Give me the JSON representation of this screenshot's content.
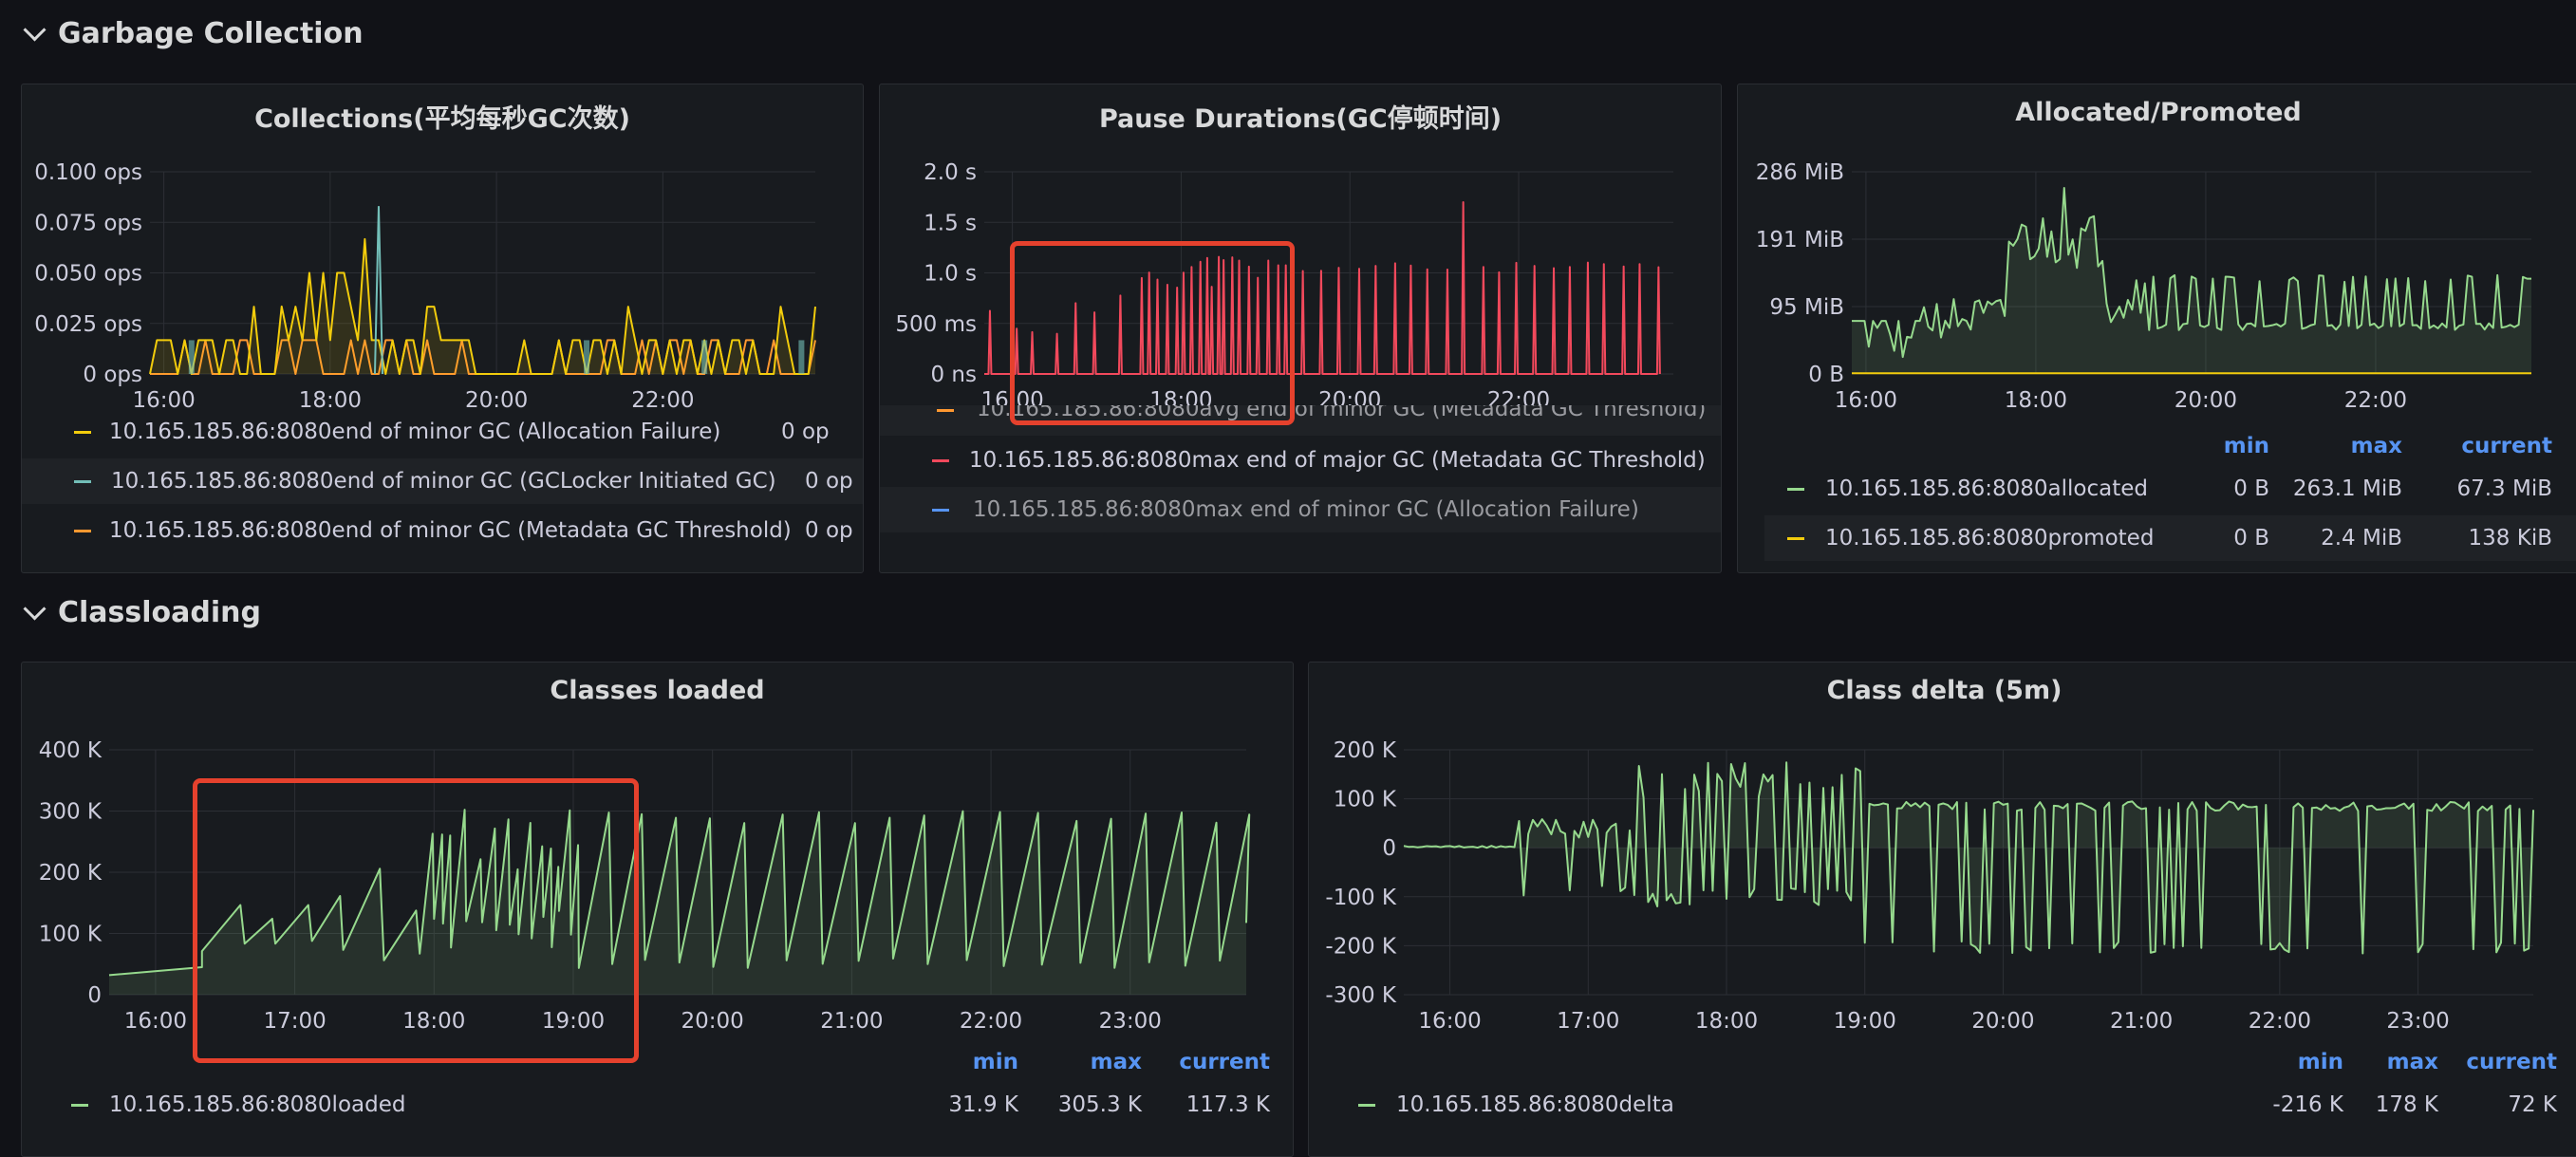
{
  "rows": {
    "gc": "Garbage Collection",
    "classloading": "Classloading"
  },
  "collections": {
    "title": "Collections(平均每秒GC次数)",
    "legend": [
      {
        "name": "10.165.185.86:8080end of minor GC (Allocation Failure)",
        "value": "0 op",
        "color": "#f2cc0c"
      },
      {
        "name": "10.165.185.86:8080end of minor GC (GCLocker Initiated GC)",
        "value": "0 op",
        "color": "#73bfb8"
      },
      {
        "name": "10.165.185.86:8080end of minor GC (Metadata GC Threshold)",
        "value": "0 op",
        "color": "#ff9830"
      }
    ]
  },
  "pause": {
    "title": "Pause Durations(GC停顿时间)",
    "legend": [
      {
        "name": "10.165.185.86:8080avg end of minor GC (Metadata GC Threshold)",
        "color": "#ff9830"
      },
      {
        "name": "10.165.185.86:8080max end of major GC (Metadata GC Threshold)",
        "color": "#f2495c"
      },
      {
        "name": "10.165.185.86:8080max end of minor GC (Allocation Failure)",
        "color": "#5794f2"
      }
    ]
  },
  "allocated": {
    "title": "Allocated/Promoted",
    "headers": {
      "min": "min",
      "max": "max",
      "current": "current"
    },
    "legend": [
      {
        "name": "10.165.185.86:8080allocated",
        "min": "0 B",
        "max": "263.1 MiB",
        "current": "67.3 MiB",
        "color": "#96d98d"
      },
      {
        "name": "10.165.185.86:8080promoted",
        "min": "0 B",
        "max": "2.4 MiB",
        "current": "138 KiB",
        "color": "#f2cc0c"
      }
    ]
  },
  "classes": {
    "title": "Classes loaded",
    "headers": {
      "min": "min",
      "max": "max",
      "current": "current"
    },
    "legend": [
      {
        "name": "10.165.185.86:8080loaded",
        "min": "31.9 K",
        "max": "305.3 K",
        "current": "117.3 K",
        "color": "#96d98d"
      }
    ]
  },
  "delta": {
    "title": "Class delta (5m)",
    "headers": {
      "min": "min",
      "max": "max",
      "current": "current"
    },
    "legend": [
      {
        "name": "10.165.185.86:8080delta",
        "min": "-216 K",
        "max": "178 K",
        "current": "72 K",
        "color": "#96d98d"
      }
    ]
  },
  "chart_data": [
    {
      "type": "line",
      "title": "Collections(平均每秒GC次数)",
      "x_start": "15:50",
      "x_end": "23:50",
      "xticks": [
        "16:00",
        "18:00",
        "20:00",
        "22:00"
      ],
      "yticks": [
        "0 ops",
        "0.025 ops",
        "0.050 ops",
        "0.075 ops",
        "0.100 ops"
      ],
      "ylim": [
        0,
        0.1
      ],
      "series": [
        {
          "name": "10.165.185.86:8080end of minor GC (Allocation Failure)",
          "color": "#f2cc0c",
          "levels": [
            0,
            0.0167,
            0.0333,
            0.05,
            0.0667
          ]
        },
        {
          "name": "10.165.185.86:8080end of minor GC (GCLocker Initiated GC)",
          "color": "#73bfb8",
          "spike_at": "18:35",
          "spike_value": 0.083
        },
        {
          "name": "10.165.185.86:8080end of minor GC (Metadata GC Threshold)",
          "color": "#ff9830",
          "levels": [
            0,
            0.0167
          ]
        }
      ]
    },
    {
      "type": "line",
      "title": "Pause Durations(GC停顿时间)",
      "x_start": "15:40",
      "x_end": "23:50",
      "xticks": [
        "16:00",
        "18:00",
        "20:00",
        "22:00"
      ],
      "yticks": [
        "0 ns",
        "500 ms",
        "1.0 s",
        "1.5 s",
        "2.0 s"
      ],
      "ylim": [
        0,
        2.0
      ],
      "series": [
        {
          "name": "10.165.185.86:8080max end of major GC (Metadata GC Threshold)",
          "color": "#f2495c",
          "typical_peak": 1.05,
          "max_peak": 1.7,
          "max_peak_at": "21:20"
        }
      ]
    },
    {
      "type": "area",
      "title": "Allocated/Promoted",
      "x_start": "15:50",
      "x_end": "23:50",
      "xticks": [
        "16:00",
        "18:00",
        "20:00",
        "22:00"
      ],
      "yticks": [
        "0 B",
        "95 MiB",
        "191 MiB",
        "286 MiB"
      ],
      "ylim": [
        0,
        286
      ],
      "series": [
        {
          "name": "10.165.185.86:8080allocated",
          "color": "#96d98d",
          "min": 0,
          "max": 263.1,
          "current": 67.3
        },
        {
          "name": "10.165.185.86:8080promoted",
          "color": "#f2cc0c",
          "min": 0,
          "max": 2.4,
          "current": 0.13
        }
      ]
    },
    {
      "type": "area",
      "title": "Classes loaded",
      "x_start": "15:40",
      "x_end": "23:50",
      "xticks": [
        "16:00",
        "17:00",
        "18:00",
        "19:00",
        "20:00",
        "21:00",
        "22:00",
        "23:00"
      ],
      "yticks": [
        "0",
        "100 K",
        "200 K",
        "300 K",
        "400 K"
      ],
      "ylim": [
        0,
        400
      ],
      "series": [
        {
          "name": "10.165.185.86:8080loaded",
          "color": "#96d98d",
          "min": 31.9,
          "max": 305.3,
          "current": 117.3
        }
      ]
    },
    {
      "type": "area",
      "title": "Class delta (5m)",
      "x_start": "15:40",
      "x_end": "23:50",
      "xticks": [
        "16:00",
        "17:00",
        "18:00",
        "19:00",
        "20:00",
        "21:00",
        "22:00",
        "23:00"
      ],
      "yticks": [
        "-300 K",
        "-200 K",
        "-100 K",
        "0",
        "100 K",
        "200 K"
      ],
      "ylim": [
        -300,
        200
      ],
      "series": [
        {
          "name": "10.165.185.86:8080delta",
          "color": "#96d98d",
          "min": -216,
          "max": 178,
          "current": 72
        }
      ]
    }
  ]
}
